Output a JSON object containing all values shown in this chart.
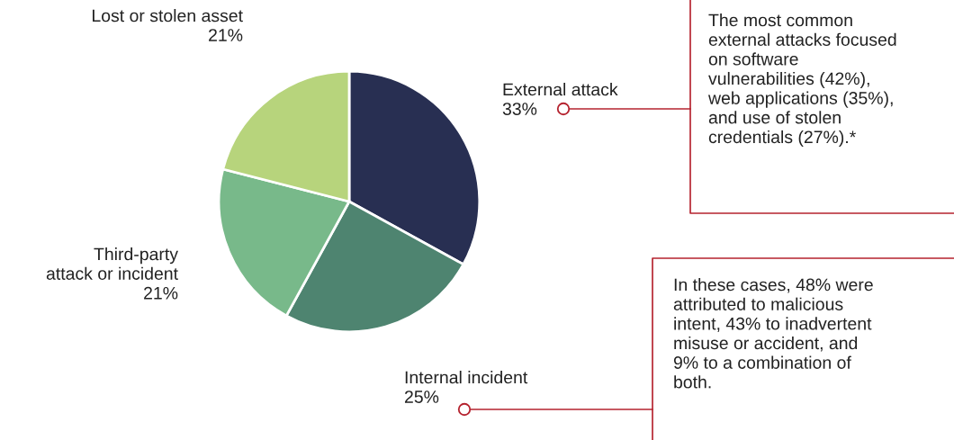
{
  "chart_data": {
    "type": "pie",
    "categories": [
      "External attack",
      "Internal incident",
      "Third-party\nattack or incident",
      "Lost or stolen asset"
    ],
    "values": [
      33,
      25,
      21,
      21
    ],
    "value_labels": [
      "33%",
      "25%",
      "21%",
      "21%"
    ],
    "colors": [
      "#282f52",
      "#4e8470",
      "#78b98a",
      "#b7d47c"
    ],
    "annotations": [
      "The most common\nexternal attacks focused\non software\nvulnerabilities (42%),\nweb applications (35%),\nand use of stolen\ncredentials (27%).*",
      "In these cases, 48% were\nattributed to malicious\nintent, 43% to inadvertent\nmisuse or accident, and\n9% to a combination of\nboth."
    ]
  }
}
